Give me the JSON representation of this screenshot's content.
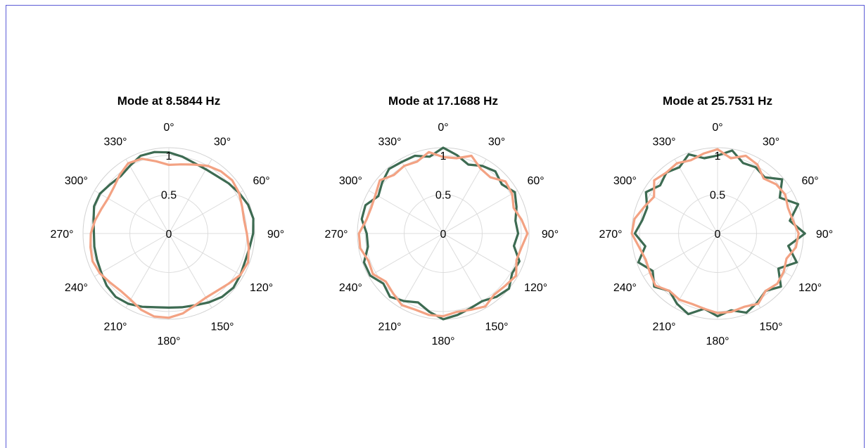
{
  "chart_data": [
    {
      "type": "polar-line",
      "title": "Mode  at  8.5844 Hz",
      "rlim": [
        0,
        1.1
      ],
      "rticks": [
        0,
        0.5,
        1
      ],
      "rtick_labels": [
        "0",
        "0.5",
        "1"
      ],
      "theta_ticks": [
        0,
        30,
        60,
        90,
        120,
        150,
        180,
        210,
        240,
        270,
        300,
        330
      ],
      "theta_tick_labels": [
        "0°",
        "30°",
        "60°",
        "90°",
        "120°",
        "150°",
        "180°",
        "210°",
        "240°",
        "270°",
        "300°",
        "330°"
      ],
      "theta_zero": "top",
      "theta_direction": "clockwise",
      "grid": true,
      "series": [
        {
          "color": "#3d6b52",
          "theta": [
            0,
            10,
            20,
            30,
            40,
            50,
            60,
            70,
            80,
            90,
            100,
            110,
            120,
            130,
            140,
            150,
            160,
            170,
            180,
            190,
            200,
            210,
            220,
            230,
            240,
            250,
            260,
            270,
            280,
            290,
            300,
            310,
            320,
            330,
            340,
            350
          ],
          "r": [
            1.04,
            1.0,
            0.96,
            0.95,
            0.96,
            1.0,
            1.04,
            1.08,
            1.1,
            1.08,
            1.05,
            1.04,
            1.06,
            1.08,
            1.06,
            1.02,
            0.98,
            0.96,
            0.95,
            0.96,
            1.0,
            1.04,
            1.06,
            1.04,
            1.0,
            0.98,
            0.97,
            0.96,
            0.98,
            1.02,
            1.02,
            0.98,
            0.96,
            1.0,
            1.06,
            1.06
          ]
        },
        {
          "color": "#f3a283",
          "theta": [
            0,
            10,
            20,
            30,
            40,
            50,
            60,
            70,
            80,
            90,
            100,
            110,
            120,
            130,
            140,
            150,
            160,
            170,
            180,
            190,
            200,
            210,
            220,
            230,
            240,
            250,
            260,
            270,
            280,
            290,
            300,
            310,
            320,
            330,
            340,
            350
          ],
          "r": [
            0.88,
            0.9,
            0.94,
            1.0,
            1.04,
            1.06,
            1.04,
            1.0,
            0.98,
            1.0,
            1.04,
            1.08,
            1.06,
            1.0,
            0.96,
            0.95,
            0.98,
            1.04,
            1.08,
            1.08,
            1.04,
            0.98,
            0.96,
            0.98,
            1.02,
            1.04,
            1.02,
            1.0,
            0.96,
            0.92,
            0.9,
            0.92,
            0.98,
            1.04,
            1.02,
            0.94
          ]
        }
      ]
    },
    {
      "type": "polar-line",
      "title": "Mode  at  17.1688 Hz",
      "rlim": [
        0,
        1.1
      ],
      "rticks": [
        0,
        0.5,
        1
      ],
      "rtick_labels": [
        "0",
        "0.5",
        "1"
      ],
      "theta_ticks": [
        0,
        30,
        60,
        90,
        120,
        150,
        180,
        210,
        240,
        270,
        300,
        330
      ],
      "theta_tick_labels": [
        "0°",
        "30°",
        "60°",
        "90°",
        "120°",
        "150°",
        "180°",
        "210°",
        "240°",
        "270°",
        "300°",
        "330°"
      ],
      "theta_zero": "top",
      "theta_direction": "clockwise",
      "grid": true,
      "series": [
        {
          "color": "#3d6b52",
          "theta": [
            0,
            10,
            20,
            30,
            40,
            50,
            60,
            70,
            80,
            90,
            100,
            110,
            120,
            130,
            140,
            150,
            160,
            170,
            180,
            190,
            200,
            210,
            220,
            230,
            240,
            250,
            260,
            270,
            280,
            290,
            300,
            310,
            320,
            330,
            340,
            350
          ],
          "r": [
            1.1,
            1.02,
            0.94,
            1.0,
            1.04,
            0.98,
            1.06,
            1.0,
            0.94,
            0.96,
            0.92,
            1.04,
            1.02,
            1.1,
            1.06,
            1.0,
            1.02,
            1.06,
            1.1,
            1.02,
            0.94,
            1.0,
            1.06,
            1.0,
            1.08,
            1.08,
            0.98,
            0.98,
            1.06,
            1.06,
            0.96,
            1.02,
            1.08,
            1.06,
            1.06,
            1.0
          ]
        },
        {
          "color": "#f3a283",
          "theta": [
            0,
            10,
            20,
            30,
            40,
            50,
            60,
            70,
            80,
            90,
            100,
            110,
            120,
            130,
            140,
            150,
            160,
            170,
            180,
            190,
            200,
            210,
            220,
            230,
            240,
            250,
            260,
            270,
            280,
            290,
            300,
            310,
            320,
            330,
            340,
            350
          ],
          "r": [
            0.98,
            0.98,
            1.06,
            0.96,
            0.94,
            1.04,
            1.02,
            0.96,
            1.02,
            1.08,
            1.02,
            1.0,
            1.08,
            1.04,
            1.02,
            1.08,
            1.04,
            1.02,
            1.06,
            1.06,
            1.04,
            1.06,
            1.0,
            0.96,
            1.04,
            1.02,
            1.08,
            1.08,
            1.0,
            0.98,
            1.0,
            1.06,
            0.98,
            1.0,
            0.98,
            1.06
          ]
        }
      ]
    },
    {
      "type": "polar-line",
      "title": "Mode  at  25.7531 Hz",
      "rlim": [
        0,
        1.1
      ],
      "rticks": [
        0,
        0.5,
        1
      ],
      "rtick_labels": [
        "0",
        "0.5",
        "1"
      ],
      "theta_ticks": [
        0,
        30,
        60,
        90,
        120,
        150,
        180,
        210,
        240,
        270,
        300,
        330
      ],
      "theta_tick_labels": [
        "0°",
        "30°",
        "60°",
        "90°",
        "120°",
        "150°",
        "180°",
        "210°",
        "240°",
        "270°",
        "300°",
        "330°"
      ],
      "theta_zero": "top",
      "theta_direction": "clockwise",
      "grid": true,
      "series": [
        {
          "color": "#3d6b52",
          "theta": [
            0,
            10,
            20,
            30,
            40,
            50,
            60,
            70,
            80,
            90,
            100,
            110,
            120,
            130,
            140,
            150,
            160,
            170,
            180,
            190,
            200,
            210,
            220,
            230,
            240,
            250,
            260,
            270,
            280,
            290,
            300,
            310,
            320,
            330,
            340,
            350
          ],
          "r": [
            1.0,
            1.08,
            0.96,
            0.98,
            0.94,
            1.08,
            0.92,
            1.1,
            0.94,
            1.12,
            0.92,
            1.08,
            0.9,
            1.06,
            0.96,
            1.02,
            1.08,
            1.0,
            1.06,
            0.98,
            1.1,
            1.04,
            0.96,
            1.06,
            0.96,
            1.08,
            0.94,
            1.06,
            0.98,
            0.96,
            1.06,
            0.96,
            1.02,
            0.98,
            1.08,
            0.98
          ]
        },
        {
          "color": "#f3a283",
          "theta": [
            0,
            10,
            20,
            30,
            40,
            50,
            60,
            70,
            80,
            90,
            100,
            110,
            120,
            130,
            140,
            150,
            160,
            170,
            180,
            190,
            200,
            210,
            220,
            230,
            240,
            250,
            260,
            270,
            280,
            290,
            300,
            310,
            320,
            330,
            340,
            350
          ],
          "r": [
            1.08,
            0.98,
            1.06,
            1.02,
            0.92,
            0.98,
            1.0,
            0.96,
            0.98,
            1.04,
            1.02,
            0.94,
            0.98,
            1.0,
            0.96,
            1.04,
            1.0,
            1.02,
            1.02,
            0.98,
            0.96,
            0.98,
            0.96,
            1.04,
            1.0,
            0.98,
            1.02,
            1.1,
            1.08,
            1.0,
            0.94,
            1.06,
            1.02,
            1.04,
            1.0,
            1.04
          ]
        }
      ]
    }
  ]
}
